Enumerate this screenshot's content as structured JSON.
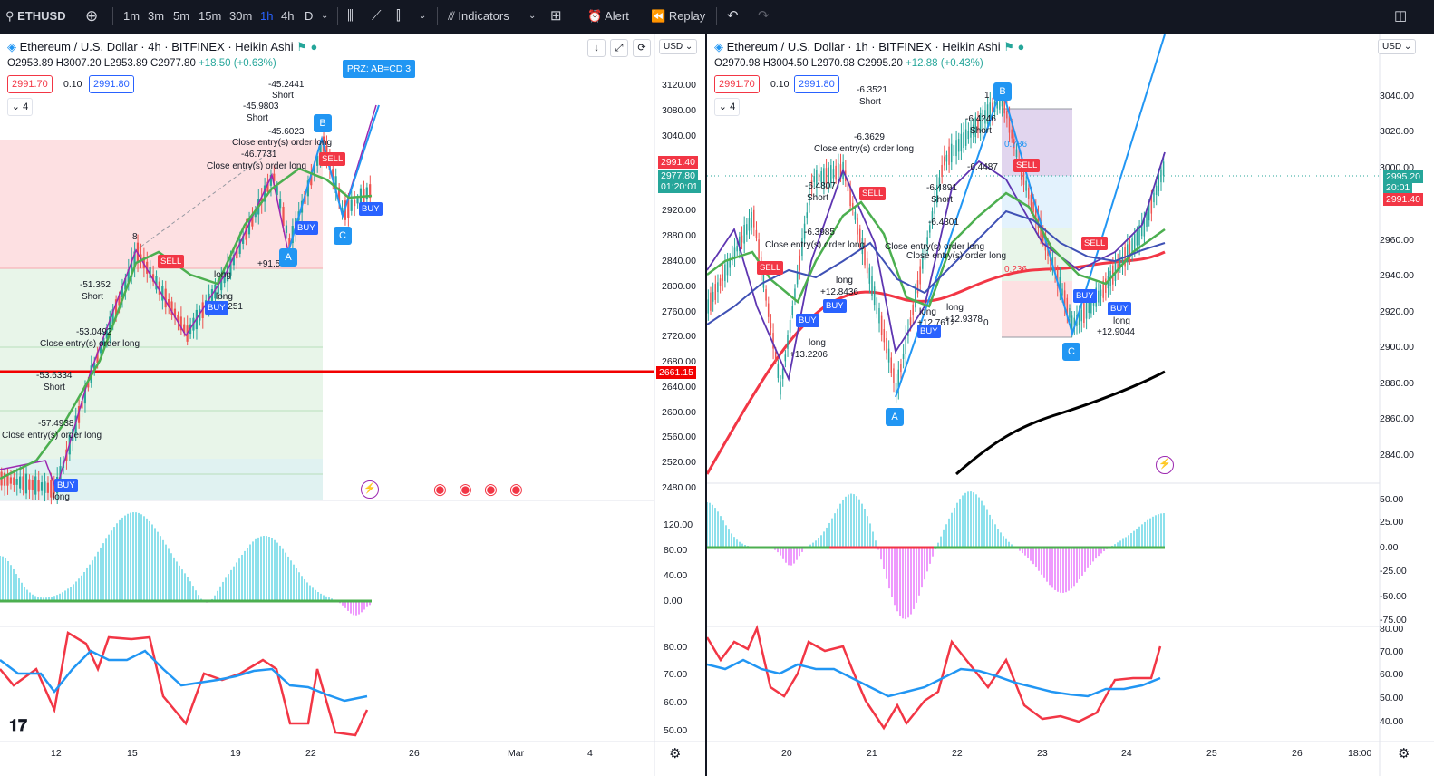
{
  "toolbar": {
    "symbol": "ETHUSD",
    "intervals": [
      "1m",
      "3m",
      "5m",
      "15m",
      "30m",
      "1h",
      "4h",
      "D"
    ],
    "active_interval": "1h",
    "indicators_label": "Indicators",
    "alert_label": "Alert",
    "replay_label": "Replay"
  },
  "left": {
    "title": "Ethereum / U.S. Dollar · 4h · BITFINEX · Heikin Ashi",
    "ohlc": {
      "o": "O2953.89",
      "h": "H3007.20",
      "l": "L2953.89",
      "c": "C2977.80",
      "chg": "+18.50 (+0.63%)"
    },
    "sell_price": "2991.70",
    "qty": "0.10",
    "buy_price": "2991.80",
    "collapse_count": "4",
    "currency": "USD",
    "price_axis": [
      "3120.00",
      "3080.00",
      "3040.00",
      "2920.00",
      "2880.00",
      "2840.00",
      "2800.00",
      "2760.00",
      "2720.00",
      "2680.00",
      "2640.00",
      "2600.00",
      "2560.00",
      "2520.00",
      "2480.00"
    ],
    "tag_last": "2991.40",
    "tag_close": "2977.80",
    "tag_countdown": "01:20:01",
    "tag_level": "2661.15",
    "osc_axis": [
      "120.00",
      "80.00",
      "40.00",
      "0.00"
    ],
    "rsi_axis": [
      "80.00",
      "70.00",
      "60.00",
      "50.00"
    ],
    "time_axis": [
      "12",
      "15",
      "19",
      "22",
      "26",
      "Mar",
      "4"
    ],
    "prz_label": "PRZ: AB=CD 3",
    "annotations": [
      "-45.2441",
      "Short",
      "-45.9803",
      "Short",
      "-45.6023",
      "Close entry(s) order long",
      "-46.7731",
      "Close entry(s) order long",
      "-51.352",
      "Short",
      "-53.0492",
      "Close entry(s) order long",
      "-53.6334",
      "Short",
      "-57.4938",
      "Close entry(s) order long",
      "long",
      "long",
      "+91.5826",
      "long",
      "+98.1251",
      "8"
    ],
    "badges": [
      "SELL",
      "SELL",
      "BUY",
      "BUY",
      "BUY",
      "BUY"
    ],
    "points": [
      "A",
      "B",
      "C"
    ]
  },
  "right": {
    "title": "Ethereum / U.S. Dollar · 1h · BITFINEX · Heikin Ashi",
    "ohlc": {
      "o": "O2970.98",
      "h": "H3004.50",
      "l": "L2970.98",
      "c": "C2995.20",
      "chg": "+12.88 (+0.43%)"
    },
    "sell_price": "2991.70",
    "qty": "0.10",
    "buy_price": "2991.80",
    "collapse_count": "4",
    "currency": "USD",
    "price_axis": [
      "3040.00",
      "3020.00",
      "3000.00",
      "2960.00",
      "2940.00",
      "2920.00",
      "2900.00",
      "2880.00",
      "2860.00",
      "2840.00"
    ],
    "tag_close": "2995.20",
    "tag_countdown": "20:01",
    "tag_last": "2991.40",
    "osc_axis": [
      "50.00",
      "25.00",
      "0.00",
      "-25.00",
      "-50.00",
      "-75.00"
    ],
    "rsi_axis": [
      "80.00",
      "70.00",
      "60.00",
      "50.00",
      "40.00"
    ],
    "time_axis": [
      "20",
      "21",
      "22",
      "23",
      "24",
      "25",
      "26",
      "18:00"
    ],
    "fib_labels": [
      "1",
      "0.786",
      "0.236",
      "0"
    ],
    "annotations": [
      "-6.3521",
      "Short",
      "-6.3629",
      "Close entry(s) order long",
      "-6.4807",
      "Short",
      "-6.3985",
      "Close entry(s) order long",
      "-6.4246",
      "Short",
      "-6.4487",
      "-6.4891",
      "Short",
      "Close entry(s) order long",
      "-6.4301",
      "Close entry(s) order long",
      "long",
      "+12.8436",
      "long",
      "+13.2206",
      "long",
      "+12.7612",
      "long",
      "+12.9378",
      "long",
      "+12.9044"
    ],
    "badges": [
      "SELL",
      "SELL",
      "SELL",
      "SELL",
      "BUY",
      "BUY",
      "BUY",
      "BUY",
      "BUY"
    ],
    "points": [
      "A",
      "B",
      "C"
    ]
  },
  "colors": {
    "bg_toolbar": "#131722",
    "buy": "#2962ff",
    "sell": "#f23645",
    "up": "#26a69a",
    "down": "#ef5350",
    "accent": "#2196f3"
  }
}
